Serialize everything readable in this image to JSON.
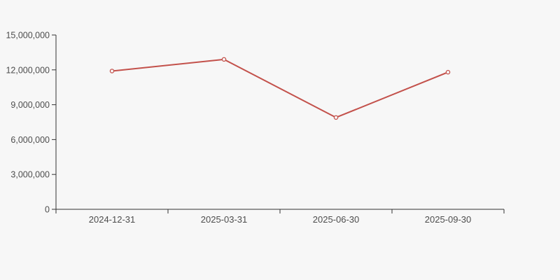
{
  "colors": {
    "background": "#f7f7f7",
    "axis_line": "#333333",
    "tick_label": "#4d4d4d",
    "series_line": "#c3514b",
    "marker_fill": "#f7f7f7"
  },
  "chart_data": {
    "type": "line",
    "title": "",
    "xlabel": "",
    "ylabel": "",
    "categories": [
      "2024-12-31",
      "2025-03-31",
      "2025-06-30",
      "2025-09-30"
    ],
    "series": [
      {
        "name": "series-1",
        "values": [
          11900000,
          12900000,
          7900000,
          11800000
        ],
        "color": "#c3514b",
        "marker": "hollow-circle"
      }
    ],
    "ylim": [
      0,
      15000000
    ],
    "y_tick_values": [
      0,
      3000000,
      6000000,
      9000000,
      12000000,
      15000000
    ],
    "y_tick_labels": [
      "0",
      "3,000,000",
      "6,000,000",
      "9,000,000",
      "12,000,000",
      "15,000,000"
    ],
    "grid": "off",
    "legend": "none"
  }
}
